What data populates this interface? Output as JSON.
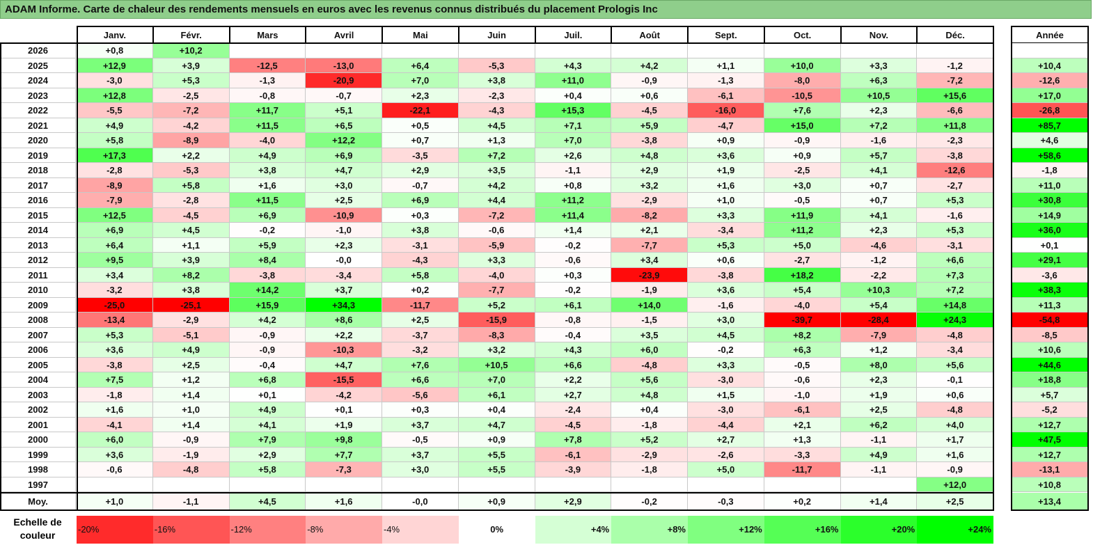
{
  "title": "ADAM Informe. Carte de chaleur des rendements mensuels en euros avec les revenus connus distribués du placement Prologis Inc",
  "chart_data": {
    "type": "heatmap",
    "title": "ADAM Informe. Carte de chaleur des rendements mensuels en euros avec les revenus connus distribués du placement Prologis Inc",
    "months": [
      "Janv.",
      "Févr.",
      "Mars",
      "Avril",
      "Mai",
      "Juin",
      "Juil.",
      "Août",
      "Sept.",
      "Oct.",
      "Nov.",
      "Déc."
    ],
    "year_header": "Année",
    "rows": [
      {
        "label": "2026",
        "values": [
          "+0,8",
          "+10,2",
          "",
          "",
          "",
          "",
          "",
          "",
          "",
          "",
          "",
          ""
        ],
        "year": ""
      },
      {
        "label": "2025",
        "values": [
          "+12,9",
          "+3,9",
          "-12,5",
          "-13,0",
          "+6,4",
          "-5,3",
          "+4,3",
          "+4,2",
          "+1,1",
          "+10,0",
          "+3,3",
          "-1,2"
        ],
        "year": "+10,4"
      },
      {
        "label": "2024",
        "values": [
          "-3,0",
          "+5,3",
          "-1,3",
          "-20,9",
          "+7,0",
          "+3,8",
          "+11,0",
          "-0,9",
          "-1,3",
          "-8,0",
          "+6,3",
          "-7,2"
        ],
        "year": "-12,6"
      },
      {
        "label": "2023",
        "values": [
          "+12,8",
          "-2,5",
          "-0,8",
          "-0,7",
          "+2,3",
          "-2,3",
          "+0,4",
          "+0,6",
          "-6,1",
          "-10,5",
          "+10,5",
          "+15,6"
        ],
        "year": "+17,0"
      },
      {
        "label": "2022",
        "values": [
          "-5,5",
          "-7,2",
          "+11,7",
          "+5,1",
          "-22,1",
          "-4,3",
          "+15,3",
          "-4,5",
          "-16,0",
          "+7,6",
          "+2,3",
          "-6,6"
        ],
        "year": "-26,8"
      },
      {
        "label": "2021",
        "values": [
          "+4,9",
          "-4,2",
          "+11,5",
          "+6,5",
          "+0,5",
          "+4,5",
          "+7,1",
          "+5,9",
          "-4,7",
          "+15,0",
          "+7,2",
          "+11,8"
        ],
        "year": "+85,7"
      },
      {
        "label": "2020",
        "values": [
          "+5,8",
          "-8,9",
          "-4,0",
          "+12,2",
          "+0,7",
          "+1,3",
          "+7,0",
          "-3,8",
          "+0,9",
          "-0,9",
          "-1,6",
          "-2,3"
        ],
        "year": "+4,6"
      },
      {
        "label": "2019",
        "values": [
          "+17,3",
          "+2,2",
          "+4,9",
          "+6,9",
          "-3,5",
          "+7,2",
          "+2,6",
          "+4,8",
          "+3,6",
          "+0,9",
          "+5,7",
          "-3,8"
        ],
        "year": "+58,6"
      },
      {
        "label": "2018",
        "values": [
          "-2,8",
          "-5,3",
          "+3,8",
          "+4,7",
          "+2,9",
          "+3,5",
          "-1,1",
          "+2,9",
          "+1,9",
          "-2,5",
          "+4,1",
          "-12,6"
        ],
        "year": "-1,8"
      },
      {
        "label": "2017",
        "values": [
          "-8,9",
          "+5,8",
          "+1,6",
          "+3,0",
          "-0,7",
          "+4,2",
          "+0,8",
          "+3,2",
          "+1,6",
          "+3,0",
          "+0,7",
          "-2,7"
        ],
        "year": "+11,0"
      },
      {
        "label": "2016",
        "values": [
          "-7,9",
          "-2,8",
          "+11,5",
          "+2,5",
          "+6,9",
          "+4,4",
          "+11,2",
          "-2,9",
          "+1,0",
          "-0,5",
          "+0,7",
          "+5,3"
        ],
        "year": "+30,8"
      },
      {
        "label": "2015",
        "values": [
          "+12,5",
          "-4,5",
          "+6,9",
          "-10,9",
          "+0,3",
          "-7,2",
          "+11,4",
          "-8,2",
          "+3,3",
          "+11,9",
          "+4,1",
          "-1,6"
        ],
        "year": "+14,9"
      },
      {
        "label": "2014",
        "values": [
          "+6,9",
          "+4,5",
          "-0,2",
          "-1,0",
          "+3,8",
          "-0,6",
          "+1,4",
          "+2,1",
          "-3,4",
          "+11,2",
          "+2,3",
          "+5,3"
        ],
        "year": "+36,0"
      },
      {
        "label": "2013",
        "values": [
          "+6,4",
          "+1,1",
          "+5,9",
          "+2,3",
          "-3,1",
          "-5,9",
          "-0,2",
          "-7,7",
          "+5,3",
          "+5,0",
          "-4,6",
          "-3,1"
        ],
        "year": "+0,1"
      },
      {
        "label": "2012",
        "values": [
          "+9,5",
          "+3,9",
          "+8,4",
          "-0,0",
          "-4,3",
          "+3,3",
          "-0,6",
          "+3,4",
          "+0,6",
          "-2,7",
          "-1,2",
          "+6,6"
        ],
        "year": "+29,1"
      },
      {
        "label": "2011",
        "values": [
          "+3,4",
          "+8,2",
          "-3,8",
          "-3,4",
          "+5,8",
          "-4,0",
          "+0,3",
          "-23,9",
          "-3,8",
          "+18,2",
          "-2,2",
          "+7,3"
        ],
        "year": "-3,6"
      },
      {
        "label": "2010",
        "values": [
          "-3,2",
          "+3,8",
          "+14,2",
          "+3,7",
          "+0,2",
          "-7,7",
          "-0,2",
          "-1,9",
          "+3,6",
          "+5,4",
          "+10,3",
          "+7,2"
        ],
        "year": "+38,3"
      },
      {
        "label": "2009",
        "values": [
          "-25,0",
          "-25,1",
          "+15,9",
          "+34,3",
          "-11,7",
          "+5,2",
          "+6,1",
          "+14,0",
          "-1,6",
          "-4,0",
          "+5,4",
          "+14,8"
        ],
        "year": "+11,3"
      },
      {
        "label": "2008",
        "values": [
          "-13,4",
          "-2,9",
          "+4,2",
          "+8,6",
          "+2,5",
          "-15,9",
          "-0,8",
          "-1,5",
          "+3,0",
          "-39,7",
          "-28,4",
          "+24,3"
        ],
        "year": "-54,8"
      },
      {
        "label": "2007",
        "values": [
          "+5,3",
          "-5,1",
          "-0,9",
          "+2,2",
          "-3,7",
          "-8,3",
          "-0,4",
          "+3,5",
          "+4,5",
          "+8,2",
          "-7,9",
          "-4,8"
        ],
        "year": "-8,5"
      },
      {
        "label": "2006",
        "values": [
          "+3,6",
          "+4,9",
          "-0,9",
          "-10,3",
          "-3,2",
          "+3,2",
          "+4,3",
          "+6,0",
          "-0,2",
          "+6,3",
          "+1,2",
          "-3,4"
        ],
        "year": "+10,6"
      },
      {
        "label": "2005",
        "values": [
          "-3,8",
          "+2,5",
          "-0,4",
          "+4,7",
          "+7,6",
          "+10,5",
          "+6,6",
          "-4,8",
          "+3,3",
          "-0,5",
          "+8,0",
          "+5,6"
        ],
        "year": "+44,6"
      },
      {
        "label": "2004",
        "values": [
          "+7,5",
          "+1,2",
          "+6,8",
          "-15,5",
          "+6,6",
          "+7,0",
          "+2,2",
          "+5,6",
          "-3,0",
          "-0,6",
          "+2,3",
          "-0,1"
        ],
        "year": "+18,8"
      },
      {
        "label": "2003",
        "values": [
          "-1,8",
          "+1,4",
          "+0,1",
          "-4,2",
          "-5,6",
          "+6,1",
          "+2,7",
          "+4,8",
          "+1,5",
          "-1,0",
          "+1,9",
          "+0,6"
        ],
        "year": "+5,7"
      },
      {
        "label": "2002",
        "values": [
          "+1,6",
          "+1,0",
          "+4,9",
          "+0,1",
          "+0,3",
          "+0,4",
          "-2,4",
          "+0,4",
          "-3,0",
          "-6,1",
          "+2,5",
          "-4,8"
        ],
        "year": "-5,2"
      },
      {
        "label": "2001",
        "values": [
          "-4,1",
          "+1,4",
          "+4,1",
          "+1,9",
          "+3,7",
          "+4,7",
          "-4,5",
          "-1,8",
          "-4,4",
          "+2,1",
          "+6,2",
          "+4,0"
        ],
        "year": "+12,7"
      },
      {
        "label": "2000",
        "values": [
          "+6,0",
          "-0,9",
          "+7,9",
          "+9,8",
          "-0,5",
          "+0,9",
          "+7,8",
          "+5,2",
          "+2,7",
          "+1,3",
          "-1,1",
          "+1,7"
        ],
        "year": "+47,5"
      },
      {
        "label": "1999",
        "values": [
          "+3,6",
          "-1,9",
          "+2,9",
          "+7,7",
          "+3,7",
          "+5,5",
          "-6,1",
          "-2,9",
          "-2,6",
          "-3,3",
          "+4,9",
          "+1,6"
        ],
        "year": "+12,7"
      },
      {
        "label": "1998",
        "values": [
          "-0,6",
          "-4,8",
          "+5,8",
          "-7,3",
          "+3,0",
          "+5,5",
          "-3,9",
          "-1,8",
          "+5,0",
          "-11,7",
          "-1,1",
          "-0,9"
        ],
        "year": "-13,1"
      },
      {
        "label": "1997",
        "values": [
          "",
          "",
          "",
          "",
          "",
          "",
          "",
          "",
          "",
          "",
          "",
          "+12,0"
        ],
        "year": "+10,8"
      }
    ],
    "average": {
      "label": "Moy.",
      "values": [
        "+1,0",
        "-1,1",
        "+4,5",
        "+1,6",
        "-0,0",
        "+0,9",
        "+2,9",
        "-0,2",
        "-0,3",
        "+0,2",
        "+1,4",
        "+2,5"
      ],
      "year": "+13,4"
    },
    "scale": {
      "label_line1": "Echelle de",
      "label_line2": "couleur",
      "stops": [
        "-20%",
        "-16%",
        "-12%",
        "-8%",
        "-4%",
        "0%",
        "+4%",
        "+8%",
        "+12%",
        "+16%",
        "+20%",
        "+24%"
      ]
    },
    "colors": {
      "negative": "#ff0000",
      "neutral": "#ffffff",
      "positive": "#00ff00",
      "title_bg": "#8fce8b"
    }
  }
}
